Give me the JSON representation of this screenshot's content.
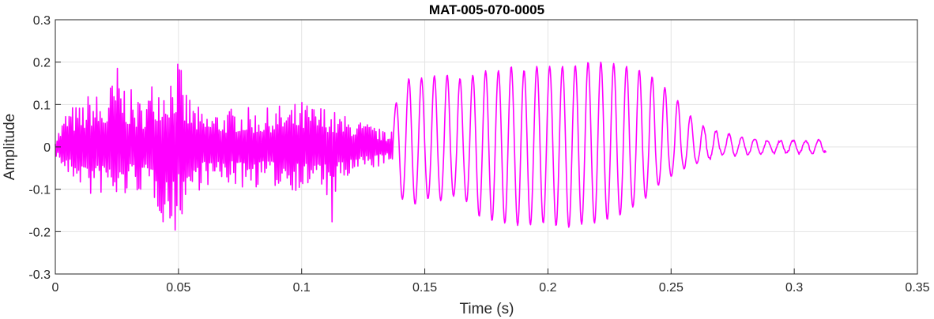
{
  "chart_data": {
    "type": "line",
    "title": "MAT-005-070-0005",
    "xlabel": "Time (s)",
    "ylabel": "Amplitude",
    "xlim": [
      0,
      0.35
    ],
    "ylim": [
      -0.3,
      0.3
    ],
    "xticks": [
      0,
      0.05,
      0.1,
      0.15,
      0.2,
      0.25,
      0.3,
      0.35
    ],
    "xtick_labels": [
      "0",
      "0.05",
      "0.1",
      "0.15",
      "0.2",
      "0.25",
      "0.3",
      "0.35"
    ],
    "yticks": [
      -0.3,
      -0.2,
      -0.1,
      0,
      0.1,
      0.2,
      0.3
    ],
    "ytick_labels": [
      "-0.3",
      "-0.2",
      "-0.1",
      "0",
      "0.1",
      "0.2",
      "0.3"
    ],
    "grid": true,
    "colors": {
      "series": "#FF00FF",
      "grid": "#E3E3E3",
      "axis": "#262626"
    },
    "series": [
      {
        "x": [
          0,
          0.005,
          0.01,
          0.015,
          0.02,
          0.025,
          0.03,
          0.035,
          0.04,
          0.045,
          0.048,
          0.05,
          0.052,
          0.055,
          0.06,
          0.065,
          0.07,
          0.075,
          0.08,
          0.085,
          0.09,
          0.095,
          0.1,
          0.105,
          0.11,
          0.112,
          0.115,
          0.12,
          0.125,
          0.13,
          0.135,
          0.14,
          0.145,
          0.15,
          0.155,
          0.16,
          0.165,
          0.17,
          0.175,
          0.18,
          0.185,
          0.19,
          0.195,
          0.2,
          0.205,
          0.21,
          0.215,
          0.22,
          0.225,
          0.23,
          0.235,
          0.24,
          0.245,
          0.25,
          0.255,
          0.26,
          0.265,
          0.27,
          0.275,
          0.28,
          0.285,
          0.29,
          0.295,
          0.3,
          0.305,
          0.31,
          0.313
        ],
        "max": [
          0.02,
          0.1,
          0.1,
          0.14,
          0.11,
          0.2,
          0.14,
          0.11,
          0.17,
          0.18,
          0.21,
          0.22,
          0.15,
          0.12,
          0.08,
          0.09,
          0.09,
          0.1,
          0.09,
          0.09,
          0.1,
          0.1,
          0.11,
          0.1,
          0.1,
          0.09,
          0.08,
          0.07,
          0.06,
          0.05,
          0.03,
          0.14,
          0.17,
          0.16,
          0.17,
          0.17,
          0.16,
          0.17,
          0.18,
          0.18,
          0.19,
          0.18,
          0.19,
          0.19,
          0.19,
          0.19,
          0.2,
          0.2,
          0.2,
          0.19,
          0.19,
          0.17,
          0.16,
          0.12,
          0.1,
          0.05,
          0.05,
          0.03,
          0.03,
          0.02,
          0.02,
          0.015,
          0.015,
          0.015,
          0.015,
          0.015,
          0.02
        ],
        "min": [
          -0.02,
          -0.08,
          -0.09,
          -0.13,
          -0.11,
          -0.15,
          -0.11,
          -0.11,
          -0.13,
          -0.2,
          -0.23,
          -0.18,
          -0.16,
          -0.13,
          -0.09,
          -0.1,
          -0.09,
          -0.1,
          -0.1,
          -0.09,
          -0.1,
          -0.1,
          -0.11,
          -0.1,
          -0.11,
          -0.21,
          -0.1,
          -0.08,
          -0.06,
          -0.05,
          -0.04,
          -0.12,
          -0.14,
          -0.12,
          -0.13,
          -0.12,
          -0.11,
          -0.16,
          -0.17,
          -0.18,
          -0.18,
          -0.19,
          -0.18,
          -0.18,
          -0.19,
          -0.19,
          -0.18,
          -0.18,
          -0.17,
          -0.16,
          -0.14,
          -0.12,
          -0.09,
          -0.07,
          -0.05,
          -0.04,
          -0.03,
          -0.02,
          -0.02,
          -0.02,
          -0.015,
          -0.015,
          -0.015,
          -0.015,
          -0.015,
          -0.015,
          -0.01
        ]
      }
    ]
  }
}
